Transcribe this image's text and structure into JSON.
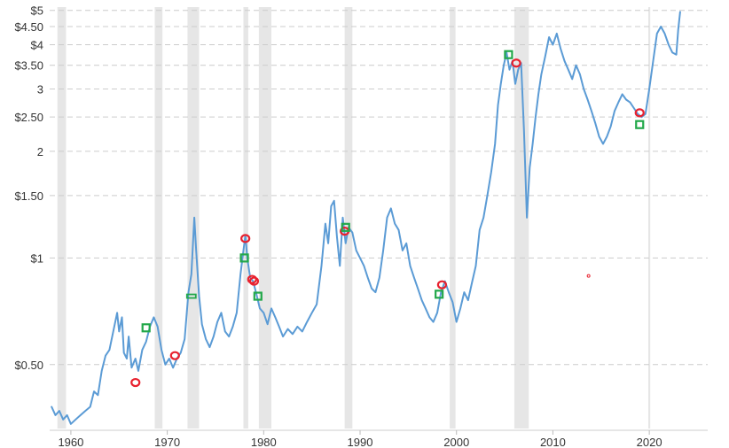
{
  "chart_data": {
    "type": "line",
    "title": "",
    "xlabel": "",
    "ylabel": "",
    "x_scale": "date",
    "y_scale": "log",
    "xlim": [
      1957.8,
      2023.3
    ],
    "ylim": [
      0.33,
      5.05
    ],
    "grid": {
      "horizontal": true,
      "vertical": false
    },
    "legend": "none",
    "x_ticks": [
      {
        "value": 1960,
        "label": "1960"
      },
      {
        "value": 1970,
        "label": "1970"
      },
      {
        "value": 1980,
        "label": "1980"
      },
      {
        "value": 1990,
        "label": "1990"
      },
      {
        "value": 2000,
        "label": "2000"
      },
      {
        "value": 2010,
        "label": "2010"
      },
      {
        "value": 2020,
        "label": "2020"
      }
    ],
    "y_ticks": [
      {
        "value": 0.5,
        "label": "$0.50"
      },
      {
        "value": 1,
        "label": "$1"
      },
      {
        "value": 1.5,
        "label": "$1.50"
      },
      {
        "value": 2,
        "label": "2"
      },
      {
        "value": 2.5,
        "label": "$2.50"
      },
      {
        "value": 3,
        "label": "3"
      },
      {
        "value": 3.5,
        "label": "$3.50"
      },
      {
        "value": 4,
        "label": "$4"
      },
      {
        "value": 4.5,
        "label": "$4.50"
      },
      {
        "value": 5,
        "label": "$5"
      }
    ],
    "colors": {
      "line": "#5b9bd5",
      "recession": "#e6e6e6",
      "marker_red": "#e8212e",
      "marker_green": "#22a84a"
    },
    "recessions": [
      [
        1958.6,
        1959.5
      ],
      [
        1968.7,
        1969.5
      ],
      [
        1972.1,
        1973.3
      ],
      [
        1977.9,
        1978.4
      ],
      [
        1979.5,
        1980.8
      ],
      [
        1988.4,
        1989.2
      ],
      [
        1999.3,
        1999.9
      ],
      [
        2006.0,
        2007.5
      ],
      [
        2019.9,
        2020.1
      ]
    ],
    "series": [
      {
        "points": [
          [
            1958.0,
            0.38
          ],
          [
            1958.4,
            0.36
          ],
          [
            1958.8,
            0.37
          ],
          [
            1959.2,
            0.35
          ],
          [
            1959.6,
            0.36
          ],
          [
            1960.0,
            0.34
          ],
          [
            1960.5,
            0.35
          ],
          [
            1961.0,
            0.36
          ],
          [
            1961.5,
            0.37
          ],
          [
            1962.0,
            0.38
          ],
          [
            1962.4,
            0.42
          ],
          [
            1962.8,
            0.41
          ],
          [
            1963.2,
            0.48
          ],
          [
            1963.6,
            0.53
          ],
          [
            1964.0,
            0.55
          ],
          [
            1964.4,
            0.62
          ],
          [
            1964.8,
            0.7
          ],
          [
            1965.0,
            0.62
          ],
          [
            1965.3,
            0.68
          ],
          [
            1965.5,
            0.54
          ],
          [
            1965.8,
            0.52
          ],
          [
            1966.0,
            0.6
          ],
          [
            1966.3,
            0.49
          ],
          [
            1966.7,
            0.52
          ],
          [
            1967.0,
            0.48
          ],
          [
            1967.4,
            0.55
          ],
          [
            1967.8,
            0.58
          ],
          [
            1968.2,
            0.64
          ],
          [
            1968.6,
            0.68
          ],
          [
            1969.0,
            0.64
          ],
          [
            1969.4,
            0.55
          ],
          [
            1969.8,
            0.5
          ],
          [
            1970.2,
            0.52
          ],
          [
            1970.6,
            0.49
          ],
          [
            1971.0,
            0.52
          ],
          [
            1971.4,
            0.54
          ],
          [
            1971.8,
            0.59
          ],
          [
            1972.2,
            0.8
          ],
          [
            1972.5,
            0.9
          ],
          [
            1972.8,
            1.3
          ],
          [
            1973.0,
            1.05
          ],
          [
            1973.3,
            0.78
          ],
          [
            1973.6,
            0.65
          ],
          [
            1974.0,
            0.59
          ],
          [
            1974.4,
            0.56
          ],
          [
            1974.8,
            0.6
          ],
          [
            1975.2,
            0.66
          ],
          [
            1975.6,
            0.7
          ],
          [
            1976.0,
            0.62
          ],
          [
            1976.4,
            0.6
          ],
          [
            1976.8,
            0.64
          ],
          [
            1977.2,
            0.7
          ],
          [
            1977.6,
            0.9
          ],
          [
            1977.9,
            1.05
          ],
          [
            1978.1,
            1.16
          ],
          [
            1978.3,
            1.0
          ],
          [
            1978.6,
            0.88
          ],
          [
            1978.9,
            0.86
          ],
          [
            1979.2,
            0.8
          ],
          [
            1979.6,
            0.72
          ],
          [
            1980.0,
            0.7
          ],
          [
            1980.4,
            0.65
          ],
          [
            1980.8,
            0.72
          ],
          [
            1981.2,
            0.68
          ],
          [
            1981.6,
            0.64
          ],
          [
            1982.0,
            0.6
          ],
          [
            1982.5,
            0.63
          ],
          [
            1983.0,
            0.61
          ],
          [
            1983.5,
            0.64
          ],
          [
            1984.0,
            0.62
          ],
          [
            1984.5,
            0.66
          ],
          [
            1985.0,
            0.7
          ],
          [
            1985.5,
            0.74
          ],
          [
            1986.0,
            0.95
          ],
          [
            1986.4,
            1.25
          ],
          [
            1986.7,
            1.1
          ],
          [
            1987.0,
            1.4
          ],
          [
            1987.3,
            1.45
          ],
          [
            1987.6,
            1.15
          ],
          [
            1987.9,
            0.95
          ],
          [
            1988.2,
            1.3
          ],
          [
            1988.5,
            1.1
          ],
          [
            1988.8,
            1.22
          ],
          [
            1989.2,
            1.18
          ],
          [
            1989.6,
            1.05
          ],
          [
            1990.0,
            1.0
          ],
          [
            1990.4,
            0.95
          ],
          [
            1990.8,
            0.88
          ],
          [
            1991.2,
            0.82
          ],
          [
            1991.6,
            0.8
          ],
          [
            1992.0,
            0.88
          ],
          [
            1992.4,
            1.05
          ],
          [
            1992.8,
            1.3
          ],
          [
            1993.2,
            1.38
          ],
          [
            1993.6,
            1.25
          ],
          [
            1994.0,
            1.2
          ],
          [
            1994.4,
            1.05
          ],
          [
            1994.8,
            1.1
          ],
          [
            1995.2,
            0.95
          ],
          [
            1995.6,
            0.88
          ],
          [
            1996.0,
            0.82
          ],
          [
            1996.4,
            0.76
          ],
          [
            1996.8,
            0.72
          ],
          [
            1997.2,
            0.68
          ],
          [
            1997.6,
            0.66
          ],
          [
            1998.0,
            0.7
          ],
          [
            1998.4,
            0.8
          ],
          [
            1998.8,
            0.86
          ],
          [
            1999.2,
            0.8
          ],
          [
            1999.6,
            0.75
          ],
          [
            2000.0,
            0.66
          ],
          [
            2000.4,
            0.72
          ],
          [
            2000.8,
            0.8
          ],
          [
            2001.2,
            0.76
          ],
          [
            2001.6,
            0.85
          ],
          [
            2002.0,
            0.95
          ],
          [
            2002.4,
            1.2
          ],
          [
            2002.8,
            1.3
          ],
          [
            2003.2,
            1.5
          ],
          [
            2003.6,
            1.75
          ],
          [
            2004.0,
            2.1
          ],
          [
            2004.3,
            2.7
          ],
          [
            2004.6,
            3.1
          ],
          [
            2004.9,
            3.5
          ],
          [
            2005.2,
            3.8
          ],
          [
            2005.5,
            3.4
          ],
          [
            2005.8,
            3.6
          ],
          [
            2006.1,
            3.1
          ],
          [
            2006.4,
            3.4
          ],
          [
            2006.7,
            3.55
          ],
          [
            2007.0,
            2.3
          ],
          [
            2007.3,
            1.3
          ],
          [
            2007.6,
            1.8
          ],
          [
            2007.9,
            2.1
          ],
          [
            2008.2,
            2.5
          ],
          [
            2008.5,
            2.9
          ],
          [
            2008.8,
            3.3
          ],
          [
            2009.2,
            3.7
          ],
          [
            2009.6,
            4.2
          ],
          [
            2010.0,
            4.0
          ],
          [
            2010.4,
            4.3
          ],
          [
            2010.8,
            3.9
          ],
          [
            2011.2,
            3.6
          ],
          [
            2011.6,
            3.4
          ],
          [
            2012.0,
            3.2
          ],
          [
            2012.4,
            3.5
          ],
          [
            2012.8,
            3.3
          ],
          [
            2013.2,
            3.0
          ],
          [
            2013.6,
            2.8
          ],
          [
            2014.0,
            2.6
          ],
          [
            2014.4,
            2.4
          ],
          [
            2014.8,
            2.2
          ],
          [
            2015.2,
            2.1
          ],
          [
            2015.6,
            2.2
          ],
          [
            2016.0,
            2.35
          ],
          [
            2016.4,
            2.6
          ],
          [
            2016.8,
            2.75
          ],
          [
            2017.2,
            2.9
          ],
          [
            2017.6,
            2.8
          ],
          [
            2018.0,
            2.75
          ],
          [
            2018.4,
            2.65
          ],
          [
            2018.8,
            2.55
          ],
          [
            2019.2,
            2.5
          ],
          [
            2019.6,
            2.55
          ],
          [
            2020.0,
            3.0
          ],
          [
            2020.4,
            3.6
          ],
          [
            2020.8,
            4.3
          ],
          [
            2021.2,
            4.5
          ],
          [
            2021.6,
            4.3
          ],
          [
            2022.0,
            4.0
          ],
          [
            2022.4,
            3.8
          ],
          [
            2022.8,
            3.75
          ],
          [
            2023.0,
            4.4
          ],
          [
            2023.2,
            4.95
          ]
        ]
      }
    ],
    "markers": [
      {
        "shape": "circle",
        "color": "red",
        "x": 1966.7,
        "y": 0.445
      },
      {
        "shape": "square",
        "color": "green",
        "x": 1967.8,
        "y": 0.635
      },
      {
        "shape": "circle",
        "color": "red",
        "x": 1970.8,
        "y": 0.53
      },
      {
        "shape": "dash",
        "color": "green",
        "x": 1972.5,
        "y": 0.78
      },
      {
        "shape": "circle",
        "color": "red",
        "x": 1978.1,
        "y": 1.135
      },
      {
        "shape": "square",
        "color": "green",
        "x": 1978.0,
        "y": 1.0
      },
      {
        "shape": "circle",
        "color": "red",
        "x": 1978.8,
        "y": 0.87
      },
      {
        "shape": "circle",
        "color": "red",
        "x": 1979.0,
        "y": 0.86
      },
      {
        "shape": "square",
        "color": "green",
        "x": 1979.4,
        "y": 0.78
      },
      {
        "shape": "circle",
        "color": "red",
        "x": 1988.4,
        "y": 1.19
      },
      {
        "shape": "square",
        "color": "green",
        "x": 1988.5,
        "y": 1.22
      },
      {
        "shape": "circle",
        "color": "red",
        "x": 1998.5,
        "y": 0.84
      },
      {
        "shape": "square",
        "color": "green",
        "x": 1998.2,
        "y": 0.79
      },
      {
        "shape": "square",
        "color": "green",
        "x": 2005.4,
        "y": 3.75
      },
      {
        "shape": "circle",
        "color": "red",
        "x": 2006.2,
        "y": 3.55
      },
      {
        "shape": "dot",
        "color": "red",
        "x": 2013.7,
        "y": 0.89
      },
      {
        "shape": "circle",
        "color": "red",
        "x": 2019.0,
        "y": 2.57
      },
      {
        "shape": "square",
        "color": "green",
        "x": 2019.0,
        "y": 2.38
      }
    ]
  }
}
